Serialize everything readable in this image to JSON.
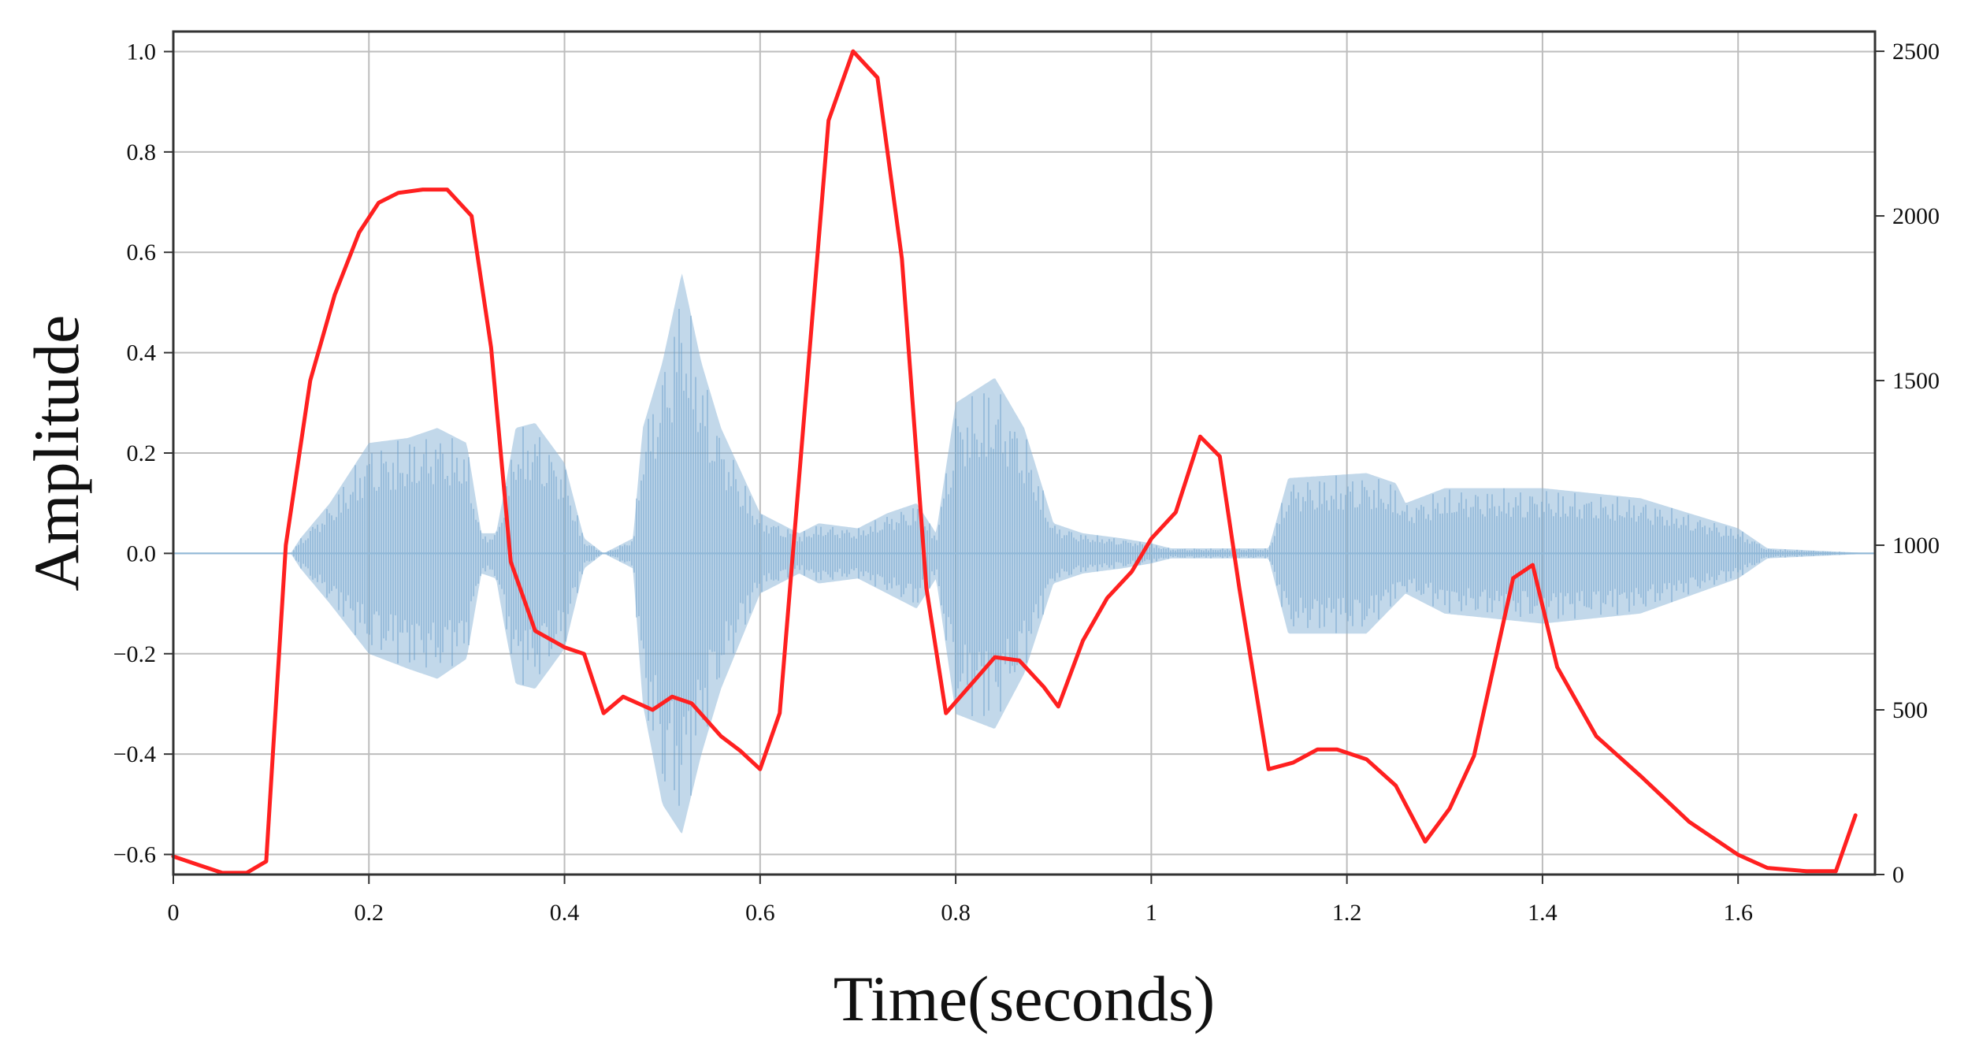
{
  "chart_data": {
    "type": "line",
    "title": "",
    "xlabel": "Time(seconds)",
    "ylabel": "Amplitude",
    "y2label": "",
    "xlim": [
      0,
      1.74
    ],
    "ylim": [
      -0.64,
      1.04
    ],
    "y2lim": [
      0,
      2560
    ],
    "grid": true,
    "xticks": [
      0,
      0.2,
      0.4,
      0.6,
      0.8,
      1,
      1.2,
      1.4,
      1.6
    ],
    "xtick_labels": [
      "0",
      "0.2",
      "0.4",
      "0.6",
      "0.8",
      "1",
      "1.2",
      "1.4",
      "1.6"
    ],
    "yticks": [
      1.0,
      0.8,
      0.6,
      0.4,
      0.2,
      0.0,
      -0.2,
      -0.4,
      -0.6
    ],
    "ytick_labels": [
      "1.0",
      "0.8",
      "0.6",
      "0.4",
      "0.2",
      "0.0",
      "−0.2",
      "−0.4",
      "−0.6"
    ],
    "y2ticks": [
      2500,
      2000,
      1500,
      1000,
      500,
      0
    ],
    "y2tick_labels": [
      "2500",
      "2000",
      "1500",
      "1000",
      "500",
      "0"
    ],
    "series": [
      {
        "role": "waveform",
        "axis": "left",
        "color": "#8fb8d8",
        "envelope": {
          "t": [
            0.0,
            0.12,
            0.13,
            0.16,
            0.2,
            0.24,
            0.27,
            0.3,
            0.315,
            0.33,
            0.34,
            0.35,
            0.37,
            0.4,
            0.42,
            0.44,
            0.47,
            0.48,
            0.5,
            0.52,
            0.54,
            0.56,
            0.6,
            0.64,
            0.66,
            0.7,
            0.73,
            0.76,
            0.78,
            0.8,
            0.84,
            0.87,
            0.9,
            0.93,
            0.97,
            1.0,
            1.02,
            1.12,
            1.14,
            1.22,
            1.25,
            1.26,
            1.3,
            1.4,
            1.5,
            1.6,
            1.63,
            1.74
          ],
          "upper": [
            0.0,
            0.0,
            0.03,
            0.1,
            0.22,
            0.23,
            0.25,
            0.22,
            0.04,
            0.04,
            0.14,
            0.25,
            0.26,
            0.18,
            0.03,
            0.0,
            0.03,
            0.25,
            0.38,
            0.56,
            0.38,
            0.25,
            0.08,
            0.04,
            0.06,
            0.05,
            0.08,
            0.1,
            0.04,
            0.3,
            0.35,
            0.25,
            0.06,
            0.04,
            0.03,
            0.02,
            0.01,
            0.01,
            0.15,
            0.16,
            0.14,
            0.1,
            0.13,
            0.13,
            0.11,
            0.05,
            0.01,
            0.0
          ],
          "lower": [
            0.0,
            0.0,
            -0.03,
            -0.1,
            -0.2,
            -0.23,
            -0.25,
            -0.21,
            -0.04,
            -0.05,
            -0.16,
            -0.26,
            -0.27,
            -0.19,
            -0.03,
            0.0,
            -0.03,
            -0.3,
            -0.5,
            -0.56,
            -0.4,
            -0.27,
            -0.08,
            -0.04,
            -0.06,
            -0.05,
            -0.08,
            -0.11,
            -0.05,
            -0.32,
            -0.35,
            -0.24,
            -0.06,
            -0.04,
            -0.03,
            -0.02,
            -0.01,
            -0.01,
            -0.16,
            -0.16,
            -0.1,
            -0.08,
            -0.12,
            -0.14,
            -0.12,
            -0.05,
            -0.01,
            0.0
          ]
        }
      },
      {
        "role": "curve",
        "axis": "right",
        "color": "#ff2020",
        "x": [
          0.0,
          0.025,
          0.05,
          0.075,
          0.095,
          0.115,
          0.14,
          0.165,
          0.19,
          0.21,
          0.23,
          0.255,
          0.28,
          0.305,
          0.325,
          0.345,
          0.37,
          0.4,
          0.42,
          0.44,
          0.46,
          0.49,
          0.51,
          0.53,
          0.56,
          0.58,
          0.6,
          0.62,
          0.67,
          0.695,
          0.72,
          0.745,
          0.77,
          0.79,
          0.84,
          0.865,
          0.89,
          0.905,
          0.93,
          0.955,
          0.98,
          1.0,
          1.025,
          1.05,
          1.07,
          1.09,
          1.12,
          1.145,
          1.17,
          1.19,
          1.22,
          1.25,
          1.28,
          1.305,
          1.33,
          1.37,
          1.39,
          1.415,
          1.455,
          1.5,
          1.55,
          1.6,
          1.63,
          1.67,
          1.7,
          1.72
        ],
        "y": [
          55,
          30,
          5,
          5,
          40,
          1000,
          1500,
          1760,
          1950,
          2040,
          2070,
          2080,
          2080,
          2000,
          1600,
          950,
          740,
          690,
          670,
          490,
          540,
          500,
          540,
          520,
          420,
          375,
          320,
          490,
          2290,
          2500,
          2420,
          1870,
          870,
          490,
          660,
          650,
          570,
          510,
          710,
          840,
          920,
          1020,
          1100,
          1330,
          1270,
          870,
          320,
          340,
          380,
          380,
          350,
          270,
          100,
          200,
          360,
          900,
          940,
          630,
          420,
          300,
          160,
          60,
          20,
          10,
          10,
          180
        ]
      }
    ]
  }
}
